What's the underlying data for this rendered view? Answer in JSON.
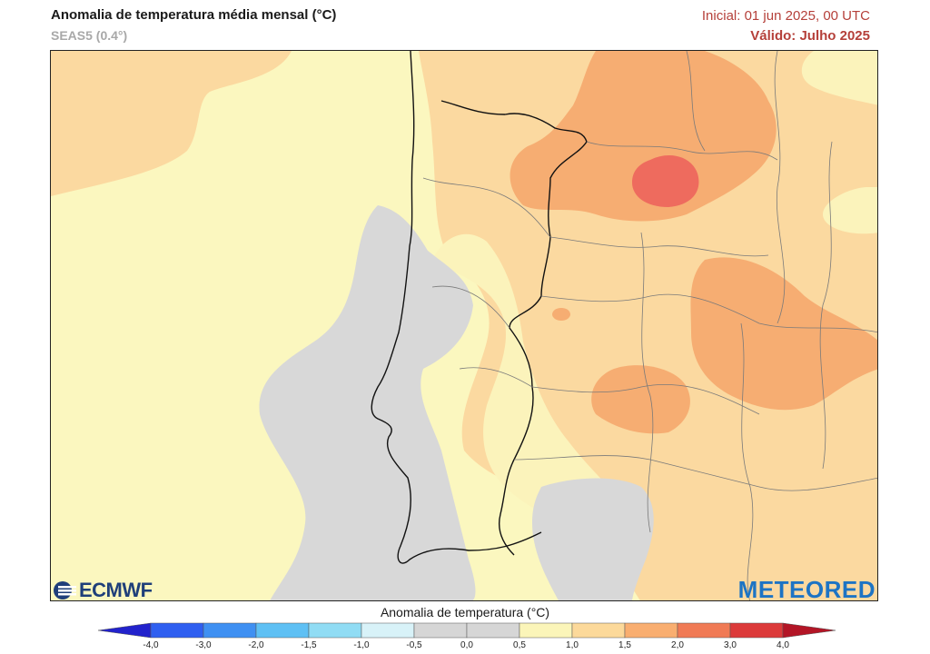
{
  "header": {
    "title": "Anomalia de temperatura média mensal (°C)",
    "subtitle": "SEAS5 (0.4°)",
    "initial": "Inicial: 01 jun 2025, 00 UTC",
    "valid": "Válido: Julho 2025"
  },
  "logos": {
    "left": "ECMWF",
    "right": "METEORED"
  },
  "legend": {
    "title": "Anomalia de temperatura (°C)",
    "ticks": [
      "-4,0",
      "-3,0",
      "-2,0",
      "-1,5",
      "-1,0",
      "-0,5",
      "0,0",
      "0,5",
      "1,0",
      "1,5",
      "2,0",
      "3,0",
      "4,0"
    ],
    "colors": [
      "#2222cc",
      "#2f5ff0",
      "#3f90f2",
      "#5ec0f4",
      "#90dcf4",
      "#d8f2f8",
      "#d6d6d6",
      "#d6d6d6",
      "#fbf5b9",
      "#fcd99a",
      "#f9ae70",
      "#f07a55",
      "#dc3a3a",
      "#b31526"
    ],
    "left_arrow_color": "#2222cc",
    "right_arrow_color": "#b31526"
  },
  "map": {
    "ocean_color": "#fbf7bf",
    "land_color": "#fbf0b5",
    "grey_color": "#d8d8d8",
    "light_orange": "#fbd9a0",
    "orange": "#f6ad72",
    "red": "#ee6b5e"
  }
}
